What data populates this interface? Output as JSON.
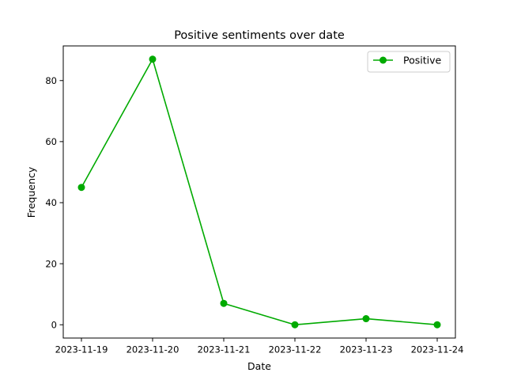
{
  "chart_data": {
    "type": "line",
    "title": "Positive sentiments over date",
    "xlabel": "Date",
    "ylabel": "Frequency",
    "categories": [
      "2023-11-19",
      "2023-11-20",
      "2023-11-21",
      "2023-11-22",
      "2023-11-23",
      "2023-11-24"
    ],
    "series": [
      {
        "name": "Positive",
        "values": [
          45,
          87,
          7,
          0,
          2,
          0
        ],
        "color": "#00aa00"
      }
    ],
    "yticks": [
      "0",
      "20",
      "40",
      "60",
      "80"
    ],
    "ylim": [
      -4.35,
      91.35
    ],
    "grid": false,
    "legend": "top-right"
  }
}
